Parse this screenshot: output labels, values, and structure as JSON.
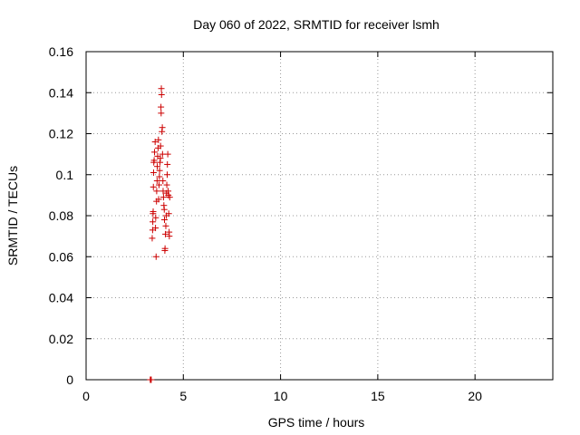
{
  "chart_data": {
    "type": "scatter",
    "title": "Day 060 of 2022, SRMTID for receiver lsmh",
    "xlabel": "GPS time / hours",
    "ylabel": "SRMTID / TECUs",
    "xlim": [
      0,
      24
    ],
    "ylim": [
      0,
      0.16
    ],
    "x_ticks": [
      0,
      5,
      10,
      15,
      20
    ],
    "x_tick_labels": [
      "0",
      "5",
      "10",
      "15",
      "20"
    ],
    "y_ticks": [
      0,
      0.02,
      0.04,
      0.06,
      0.08,
      0.1,
      0.12,
      0.14,
      0.16
    ],
    "y_tick_labels": [
      "0",
      "0.02",
      "0.04",
      "0.06",
      "0.08",
      "0.1",
      "0.12",
      "0.14",
      "0.16"
    ],
    "grid": true,
    "grid_style": "dotted",
    "marker": "plus",
    "color": "#cc0000",
    "series": [
      {
        "points": [
          [
            3.3,
            0.0
          ],
          [
            3.32,
            0.0
          ],
          [
            3.35,
            0.0
          ],
          [
            3.4,
            0.069
          ],
          [
            3.42,
            0.073
          ],
          [
            3.43,
            0.077
          ],
          [
            3.44,
            0.081
          ],
          [
            3.45,
            0.082
          ],
          [
            3.46,
            0.094
          ],
          [
            3.47,
            0.101
          ],
          [
            3.48,
            0.106
          ],
          [
            3.5,
            0.107
          ],
          [
            3.52,
            0.111
          ],
          [
            3.55,
            0.116
          ],
          [
            3.57,
            0.074
          ],
          [
            3.58,
            0.079
          ],
          [
            3.6,
            0.06
          ],
          [
            3.62,
            0.087
          ],
          [
            3.63,
            0.092
          ],
          [
            3.65,
            0.097
          ],
          [
            3.66,
            0.104
          ],
          [
            3.68,
            0.109
          ],
          [
            3.7,
            0.113
          ],
          [
            3.72,
            0.117
          ],
          [
            3.73,
            0.088
          ],
          [
            3.75,
            0.095
          ],
          [
            3.77,
            0.099
          ],
          [
            3.78,
            0.102
          ],
          [
            3.8,
            0.106
          ],
          [
            3.82,
            0.108
          ],
          [
            3.83,
            0.114
          ],
          [
            3.85,
            0.133
          ],
          [
            3.86,
            0.13
          ],
          [
            3.87,
            0.142
          ],
          [
            3.88,
            0.139
          ],
          [
            3.9,
            0.121
          ],
          [
            3.92,
            0.123
          ],
          [
            3.93,
            0.11
          ],
          [
            3.95,
            0.097
          ],
          [
            3.96,
            0.092
          ],
          [
            3.98,
            0.089
          ],
          [
            4.0,
            0.085
          ],
          [
            4.02,
            0.083
          ],
          [
            4.03,
            0.078
          ],
          [
            4.05,
            0.063
          ],
          [
            4.06,
            0.064
          ],
          [
            4.08,
            0.071
          ],
          [
            4.1,
            0.075
          ],
          [
            4.12,
            0.08
          ],
          [
            4.13,
            0.091
          ],
          [
            4.15,
            0.095
          ],
          [
            4.17,
            0.1
          ],
          [
            4.18,
            0.105
          ],
          [
            4.2,
            0.11
          ],
          [
            4.22,
            0.092
          ],
          [
            4.23,
            0.09
          ],
          [
            4.25,
            0.081
          ],
          [
            4.27,
            0.072
          ],
          [
            4.28,
            0.07
          ],
          [
            4.3,
            0.089
          ]
        ]
      }
    ]
  }
}
